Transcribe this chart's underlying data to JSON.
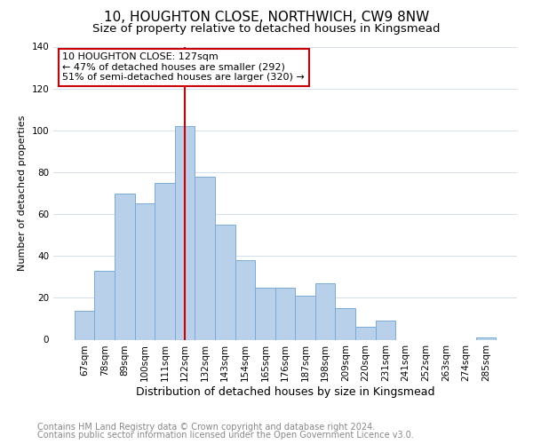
{
  "title": "10, HOUGHTON CLOSE, NORTHWICH, CW9 8NW",
  "subtitle": "Size of property relative to detached houses in Kingsmead",
  "xlabel": "Distribution of detached houses by size in Kingsmead",
  "ylabel": "Number of detached properties",
  "bar_labels": [
    "67sqm",
    "78sqm",
    "89sqm",
    "100sqm",
    "111sqm",
    "122sqm",
    "132sqm",
    "143sqm",
    "154sqm",
    "165sqm",
    "176sqm",
    "187sqm",
    "198sqm",
    "209sqm",
    "220sqm",
    "231sqm",
    "241sqm",
    "252sqm",
    "263sqm",
    "274sqm",
    "285sqm"
  ],
  "bar_heights": [
    14,
    33,
    70,
    65,
    75,
    102,
    78,
    55,
    38,
    25,
    25,
    21,
    27,
    15,
    6,
    9,
    0,
    0,
    0,
    0,
    1
  ],
  "bar_color": "#b8d0ea",
  "bar_edge_color": "#7aabd4",
  "highlight_bar_index": 5,
  "highlight_line_color": "#cc0000",
  "ylim": [
    0,
    140
  ],
  "annotation_text": "10 HOUGHTON CLOSE: 127sqm\n← 47% of detached houses are smaller (292)\n51% of semi-detached houses are larger (320) →",
  "annotation_box_color": "#ffffff",
  "annotation_box_edge_color": "#cc0000",
  "footer_line1": "Contains HM Land Registry data © Crown copyright and database right 2024.",
  "footer_line2": "Contains public sector information licensed under the Open Government Licence v3.0.",
  "title_fontsize": 11,
  "subtitle_fontsize": 9.5,
  "xlabel_fontsize": 9,
  "ylabel_fontsize": 8,
  "tick_fontsize": 7.5,
  "annotation_fontsize": 8,
  "footer_fontsize": 7
}
